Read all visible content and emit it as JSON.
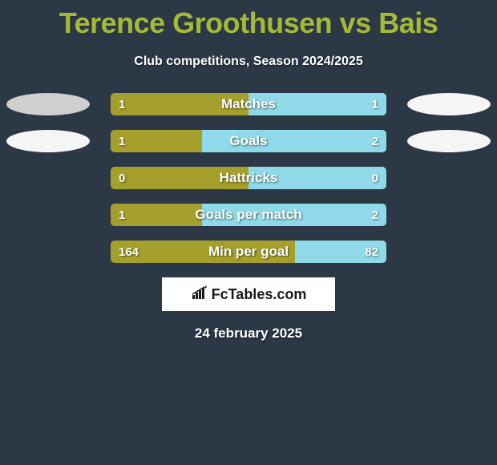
{
  "title": "Terence Groothusen vs Bais",
  "subtitle": "Club competitions, Season 2024/2025",
  "date": "24 february 2025",
  "logo_text": "FcTables.com",
  "colors": {
    "background": "#2c3846",
    "title": "#a5b937",
    "text_white": "#ffffff",
    "bar_left": "#a5a02c",
    "bar_right": "#8fd9e8",
    "ellipse_light": "#f0f0f0",
    "ellipse_shadow": "#cfcfcf"
  },
  "rows": [
    {
      "label": "Matches",
      "left_value": "1",
      "right_value": "1",
      "left_pct": 50,
      "show_ellipses": true,
      "ellipse_left_color": "#cfcfcf",
      "ellipse_right_color": "#f5f5f5"
    },
    {
      "label": "Goals",
      "left_value": "1",
      "right_value": "2",
      "left_pct": 33,
      "show_ellipses": true,
      "ellipse_left_color": "#f5f5f5",
      "ellipse_right_color": "#f5f5f5"
    },
    {
      "label": "Hattricks",
      "left_value": "0",
      "right_value": "0",
      "left_pct": 50,
      "show_ellipses": false
    },
    {
      "label": "Goals per match",
      "left_value": "1",
      "right_value": "2",
      "left_pct": 33,
      "show_ellipses": false
    },
    {
      "label": "Min per goal",
      "left_value": "164",
      "right_value": "82",
      "left_pct": 67,
      "show_ellipses": false
    }
  ]
}
